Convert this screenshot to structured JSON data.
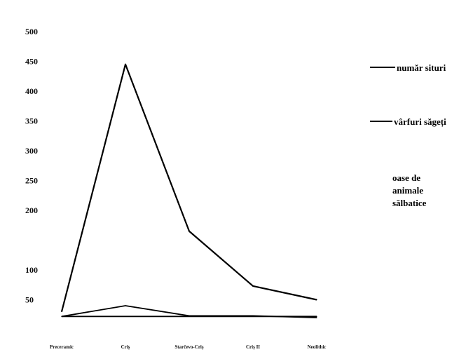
{
  "chart_data": {
    "type": "line",
    "categories": [
      "Preceramic",
      "Criș",
      "Starčevo-Criș",
      "Criș II",
      "Neolithic"
    ],
    "series": [
      {
        "name": "număr situri",
        "values": [
          30,
          445,
          165,
          73,
          50
        ],
        "color": "#000000"
      },
      {
        "name": "vârfuri săgeți",
        "values": [
          22,
          40,
          23,
          23,
          20
        ],
        "color": "#000000"
      },
      {
        "name": "oase de animale sălbatice",
        "values": [
          22,
          22,
          22,
          22,
          22
        ],
        "color": "#000000"
      }
    ],
    "legend_extra_label_lines": [
      "oase de",
      "animale",
      "sălbatice"
    ],
    "yticks": [
      500,
      450,
      400,
      350,
      300,
      250,
      200,
      100,
      50
    ],
    "ylim": [
      0,
      500
    ],
    "title": "",
    "xlabel": "",
    "ylabel": "",
    "grid": false,
    "legend_position": "right"
  }
}
